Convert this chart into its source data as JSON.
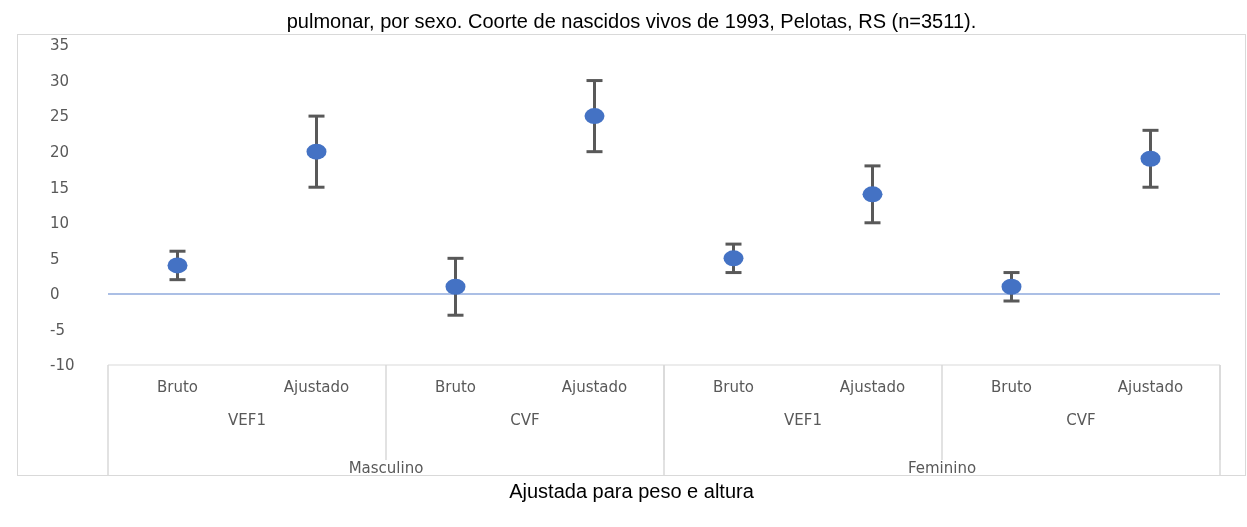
{
  "chart_data": {
    "type": "scatter",
    "title": "pulmonar, por sexo. Coorte de nascidos vivos de 1993, Pelotas, RS (n=3511).",
    "categories": [
      "Bruto",
      "Ajustado",
      "Bruto",
      "Ajustado",
      "Bruto",
      "Ajustado",
      "Bruto",
      "Ajustado"
    ],
    "series": [
      {
        "color": "#4472c4",
        "values": [
          4,
          20,
          1,
          25,
          5,
          14,
          1,
          19
        ],
        "errors": [
          [
            2,
            6
          ],
          [
            15,
            25
          ],
          [
            -3,
            5
          ],
          [
            20,
            30
          ],
          [
            3,
            7
          ],
          [
            10,
            18
          ],
          [
            -1,
            3
          ],
          [
            15,
            23
          ]
        ]
      }
    ],
    "ylim": [
      -10,
      35
    ],
    "yticks": [
      -10,
      -5,
      0,
      5,
      10,
      15,
      20,
      25,
      30,
      35
    ],
    "ref_lines": [
      {
        "axis": "y",
        "value": 0,
        "color": "#8faadc"
      }
    ],
    "annotations": [
      "VEF1",
      "CVF",
      "VEF1",
      "CVF",
      "Masculino",
      "Feminino",
      "Ajustada para peso e altura"
    ],
    "grid": false,
    "legend": false,
    "marker": "circle"
  }
}
